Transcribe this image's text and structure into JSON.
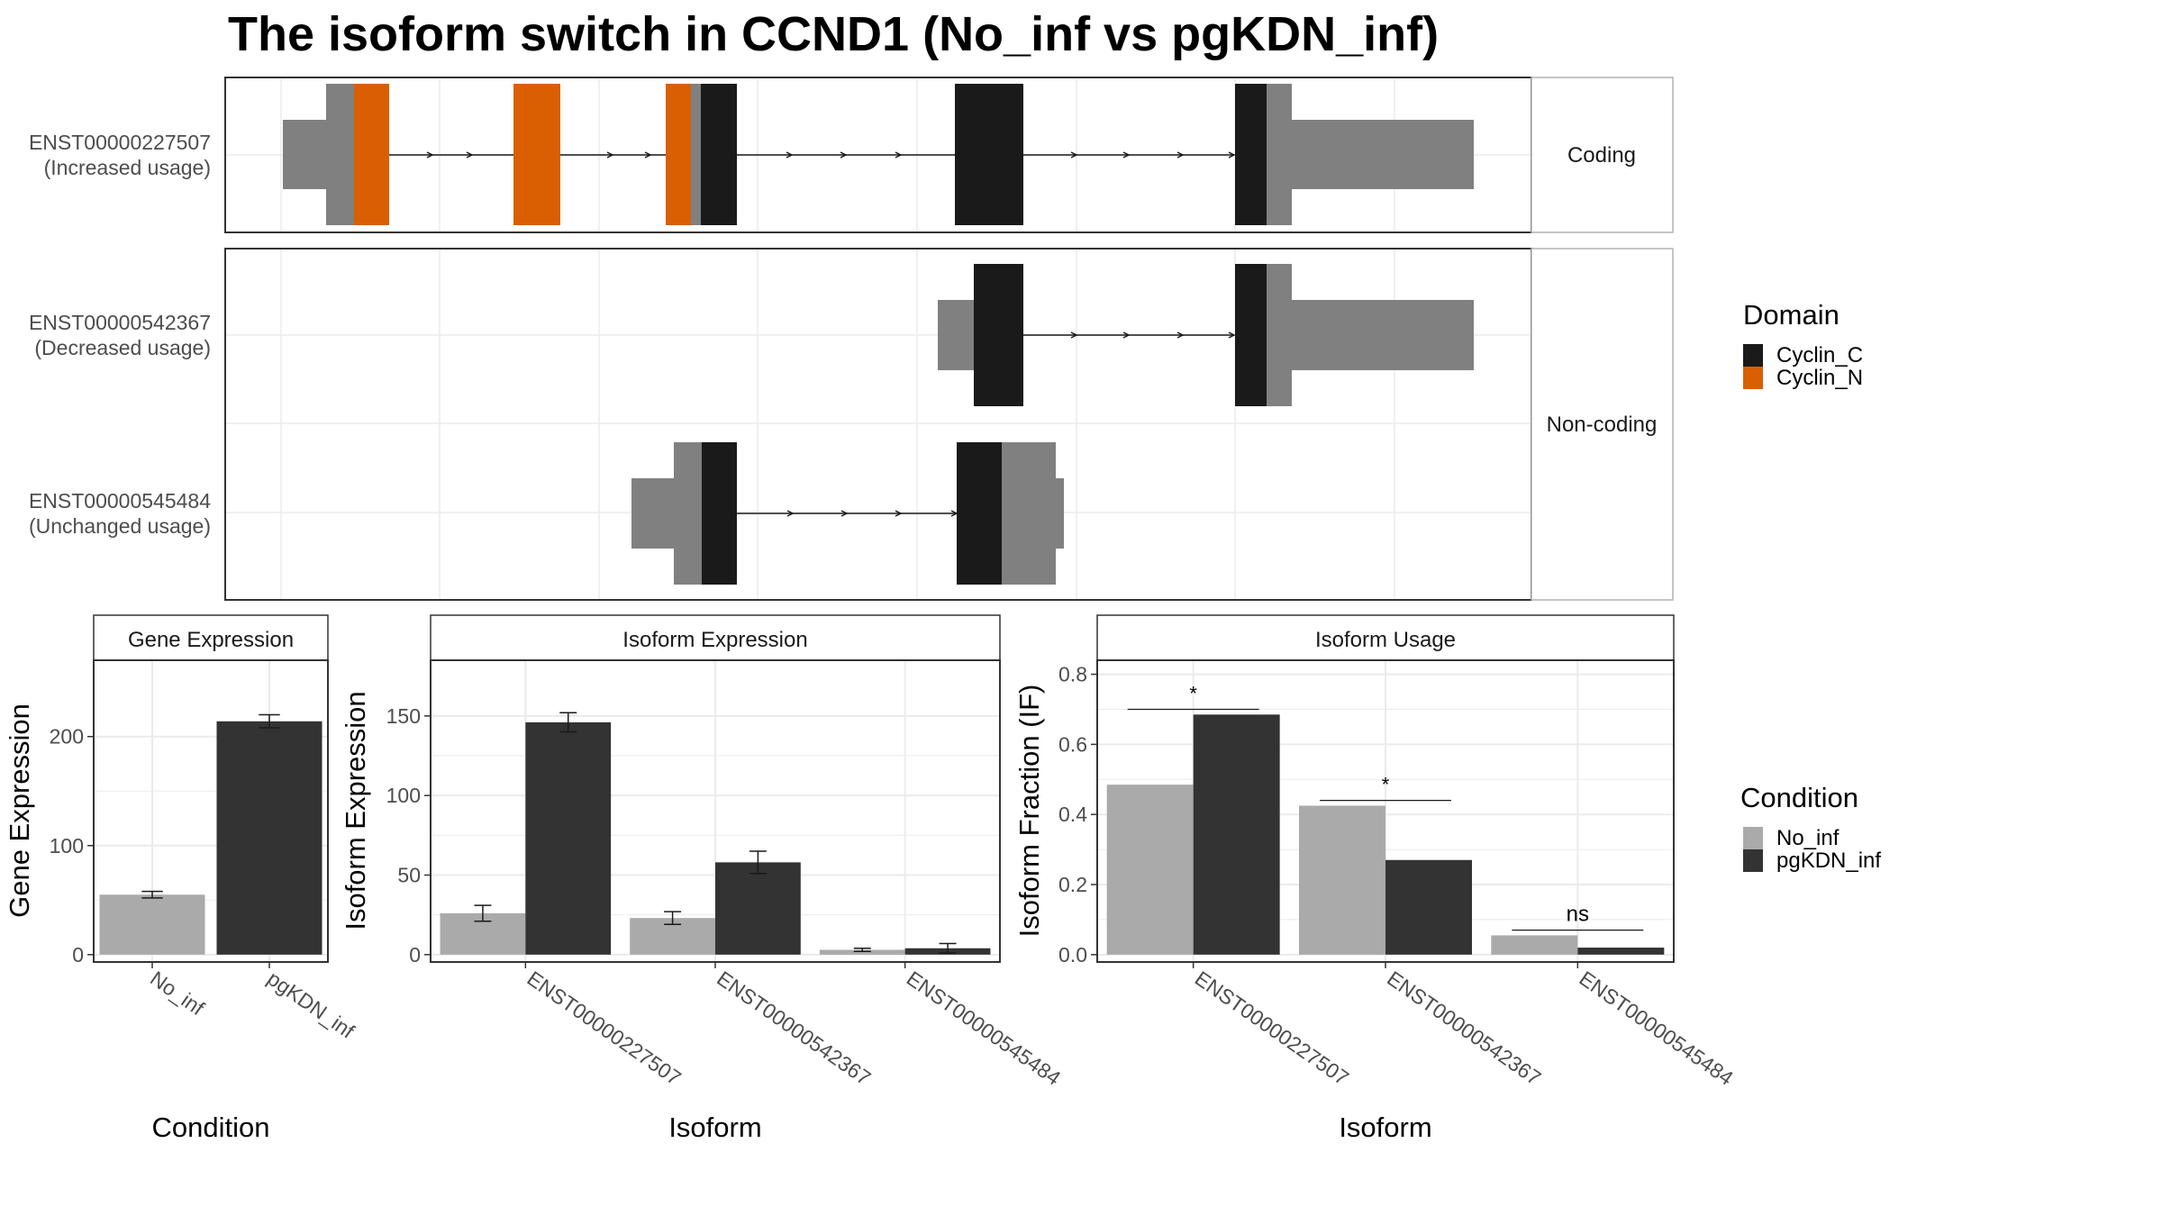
{
  "title": "The isoform switch in CCND1 (No_inf vs pgKDN_inf)",
  "colors": {
    "domain_Cyclin_C": "#1a1a1a",
    "domain_Cyclin_N": "#d95f02",
    "noncoding_exon": "#808080",
    "condition_No_inf": "#aaaaaa",
    "condition_pgKDN_inf": "#333333",
    "grid": "#ebebeb",
    "strip_border": "#b3b3b3",
    "panel_border": "#333333"
  },
  "chart_data": [
    {
      "type": "gene-structure",
      "panels": [
        {
          "strip_label": "Coding",
          "transcripts": [
            {
              "id": "ENST00000227507",
              "usage": "(Increased usage)"
            }
          ]
        },
        {
          "strip_label": "Non-coding",
          "transcripts": [
            {
              "id": "ENST00000542367",
              "usage": "(Decreased usage)"
            },
            {
              "id": "ENST00000545484",
              "usage": "(Unchanged usage)"
            }
          ]
        }
      ],
      "domain_legend": {
        "title": "Domain",
        "items": [
          {
            "label": "Cyclin_C",
            "color": "#1a1a1a"
          },
          {
            "label": "Cyclin_N",
            "color": "#d95f02"
          }
        ]
      }
    },
    {
      "type": "bar",
      "strip_label": "Gene Expression",
      "xlabel": "Condition",
      "ylabel": "Gene Expression",
      "categories": [
        "No_inf",
        "pgKDN_inf"
      ],
      "values": [
        55,
        214
      ],
      "errors": [
        3,
        6
      ],
      "ylim": [
        0,
        270
      ],
      "yticks": [
        0,
        100,
        200
      ]
    },
    {
      "type": "bar",
      "strip_label": "Isoform Expression",
      "xlabel": "Isoform",
      "ylabel": "Isoform Expression",
      "categories": [
        "ENST00000227507",
        "ENST00000542367",
        "ENST00000545484"
      ],
      "series": [
        {
          "name": "No_inf",
          "values": [
            26,
            23,
            3
          ],
          "errors": [
            5,
            4,
            1
          ]
        },
        {
          "name": "pgKDN_inf",
          "values": [
            146,
            58,
            4
          ],
          "errors": [
            6,
            7,
            3
          ]
        }
      ],
      "ylim": [
        0,
        185
      ],
      "yticks": [
        0,
        50,
        100,
        150
      ]
    },
    {
      "type": "bar",
      "strip_label": "Isoform Usage",
      "xlabel": "Isoform",
      "ylabel": "Isoform Fraction (IF)",
      "categories": [
        "ENST00000227507",
        "ENST00000542367",
        "ENST00000545484"
      ],
      "series": [
        {
          "name": "No_inf",
          "values": [
            0.485,
            0.425,
            0.055
          ]
        },
        {
          "name": "pgKDN_inf",
          "values": [
            0.685,
            0.27,
            0.02
          ]
        }
      ],
      "significance": [
        "*",
        "*",
        "ns"
      ],
      "ylim": [
        0,
        0.84
      ],
      "yticks": [
        0.0,
        0.2,
        0.4,
        0.6,
        0.8
      ]
    }
  ],
  "condition_legend": {
    "title": "Condition",
    "items": [
      {
        "label": "No_inf",
        "color": "#aaaaaa"
      },
      {
        "label": "pgKDN_inf",
        "color": "#333333"
      }
    ]
  }
}
